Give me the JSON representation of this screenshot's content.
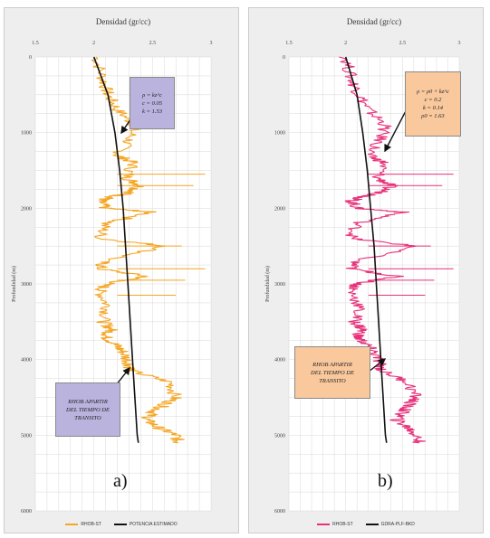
{
  "chart_data": [
    {
      "type": "line",
      "panel_label": "a)",
      "title": "Densidad (gr/cc)",
      "xlabel": "Densidad (gr/cc)",
      "ylabel": "Profundidad (m)",
      "xlim": [
        1.5,
        3
      ],
      "ylim": [
        0,
        6000
      ],
      "x_ticks": [
        1.5,
        2,
        2.5,
        3
      ],
      "x_tick_labels": [
        "1.5",
        "2",
        "2.5",
        "3"
      ],
      "y_ticks": [
        0,
        1000,
        2000,
        3000,
        4000,
        5000,
        6000
      ],
      "y_tick_labels": [
        "0",
        "1000",
        "2000",
        "3000",
        "4000",
        "5000",
        "6000"
      ],
      "grid": true,
      "legend_position": "bottom",
      "series": [
        {
          "name": "RHOB-ST",
          "color": "#f5a623",
          "x": [
            2.02,
            2.08,
            2.12,
            2.2,
            2.35,
            2.3,
            2.2,
            2.34,
            2.28,
            2.4,
            2.3,
            2.15,
            2.05,
            2.1,
            2.5,
            2.1,
            2.05,
            2.62,
            2.08,
            2.05,
            2.45,
            2.1,
            2.05,
            2.12,
            2.08,
            2.15,
            2.1,
            2.18,
            2.25,
            2.3,
            2.32,
            2.65,
            2.7,
            2.6,
            2.5,
            2.45,
            2.55,
            2.7,
            2.72
          ],
          "y": [
            0,
            300,
            500,
            700,
            900,
            1100,
            1300,
            1400,
            1600,
            1700,
            1800,
            1850,
            1900,
            2000,
            2050,
            2200,
            2400,
            2500,
            2700,
            2800,
            2900,
            3000,
            3100,
            3300,
            3500,
            3600,
            3700,
            3800,
            3900,
            4050,
            4150,
            4300,
            4500,
            4600,
            4700,
            4800,
            4900,
            5000,
            5100
          ]
        },
        {
          "name": "POTENCIA ESTIMADO",
          "color": "#111111",
          "x": [
            2.0,
            2.12,
            2.18,
            2.22,
            2.25,
            2.27,
            2.29,
            2.31,
            2.33,
            2.35,
            2.37,
            2.38
          ],
          "y": [
            0,
            500,
            1000,
            1500,
            2000,
            2500,
            3000,
            3500,
            4000,
            4500,
            5000,
            5100
          ]
        }
      ],
      "annotations": [
        {
          "lines": [
            "ρ = kz^c",
            "c = 0.05",
            "k = 1.53"
          ]
        },
        {
          "lines": [
            "RHOB APARTIR",
            "DEL TIEMPO DE",
            "TRANSITO"
          ]
        }
      ]
    },
    {
      "type": "line",
      "panel_label": "b)",
      "title": "Densidad (gr/cc)",
      "xlabel": "Densidad (gr/cc)",
      "ylabel": "Profundidad (m)",
      "xlim": [
        1.5,
        3
      ],
      "ylim": [
        0,
        6000
      ],
      "x_ticks": [
        1.5,
        2,
        2.5,
        3
      ],
      "x_tick_labels": [
        "1.5",
        "2",
        "2.5",
        "3"
      ],
      "y_ticks": [
        0,
        1000,
        2000,
        3000,
        4000,
        5000,
        6000
      ],
      "y_tick_labels": [
        "0",
        "1000",
        "2000",
        "3000",
        "4000",
        "5000",
        "6000"
      ],
      "grid": true,
      "legend_position": "bottom",
      "series": [
        {
          "name": "RHOB-ST",
          "color": "#e8317a",
          "x": [
            2.0,
            2.05,
            2.12,
            2.2,
            2.35,
            2.3,
            2.2,
            2.34,
            2.28,
            2.4,
            2.3,
            2.15,
            2.05,
            2.1,
            2.5,
            2.1,
            2.05,
            2.62,
            2.08,
            2.05,
            2.45,
            2.1,
            2.05,
            2.12,
            2.08,
            2.15,
            2.1,
            2.18,
            2.25,
            2.3,
            2.32,
            2.55,
            2.62,
            2.55,
            2.5,
            2.45,
            2.55,
            2.62,
            2.65
          ],
          "y": [
            0,
            300,
            500,
            700,
            900,
            1100,
            1300,
            1400,
            1600,
            1700,
            1800,
            1850,
            1900,
            2000,
            2050,
            2200,
            2400,
            2500,
            2700,
            2800,
            2900,
            3000,
            3100,
            3300,
            3500,
            3600,
            3700,
            3800,
            3900,
            4050,
            4150,
            4300,
            4500,
            4600,
            4700,
            4800,
            4900,
            5000,
            5100
          ]
        },
        {
          "name": "GDRA-PLF-BKD",
          "color": "#111111",
          "x": [
            2.0,
            2.1,
            2.15,
            2.19,
            2.22,
            2.25,
            2.27,
            2.29,
            2.31,
            2.33,
            2.35,
            2.36
          ],
          "y": [
            0,
            500,
            1000,
            1500,
            2000,
            2500,
            3000,
            3500,
            4000,
            4500,
            5000,
            5100
          ]
        }
      ],
      "annotations": [
        {
          "lines": [
            "ρ = ρ0 + kz^c",
            "c = 0.2",
            "k = 0.14",
            "ρ0 = 1.63"
          ]
        },
        {
          "lines": [
            "RHOB APARTIR",
            "DEL TIEMPO DE",
            "TRANSITO"
          ]
        }
      ]
    }
  ]
}
